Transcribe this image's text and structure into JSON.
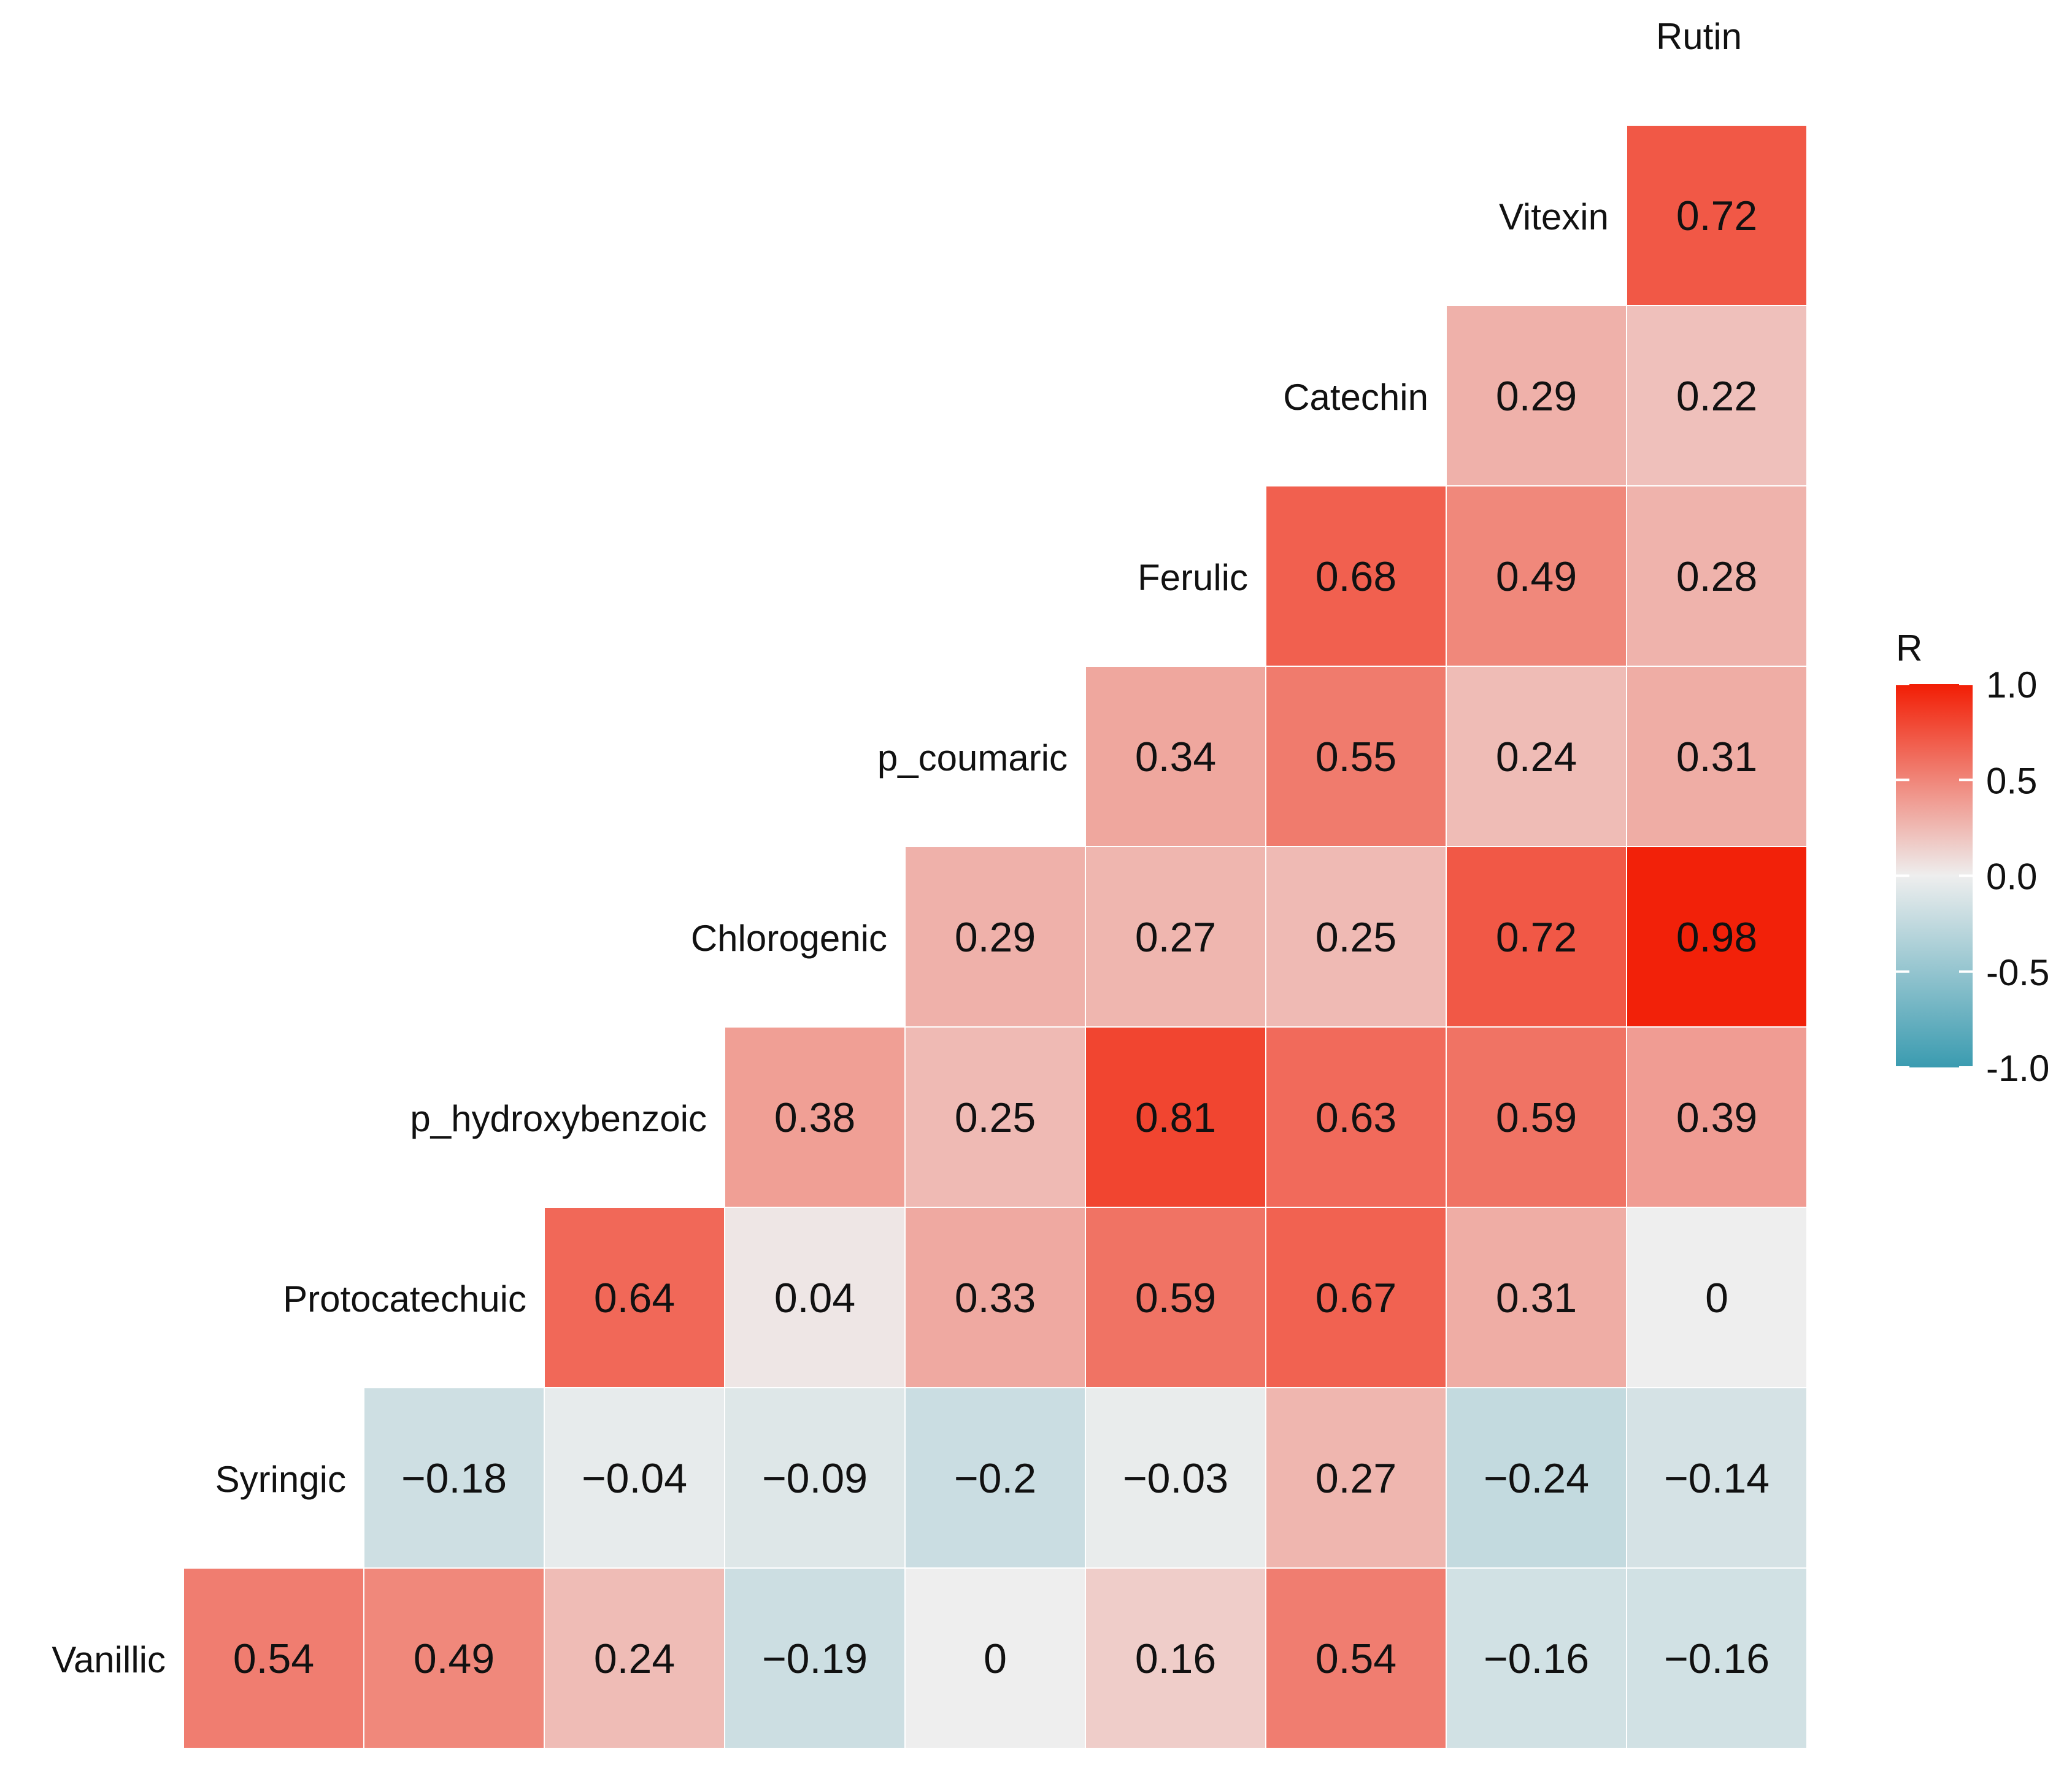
{
  "chart_data": {
    "type": "heatmap",
    "title": "",
    "subtitle": "",
    "xlabel": "",
    "ylabel": "",
    "layout": "lower-triangle correlation matrix with diagonal row labels",
    "variables": [
      "Vanillic",
      "Syringic",
      "Protocatechuic",
      "p_hydroxybenzoic",
      "Chlorogenic",
      "p_coumaric",
      "Ferulic",
      "Catechin",
      "Vitexin",
      "Rutin"
    ],
    "rows": [
      {
        "name": "Rutin",
        "cells": []
      },
      {
        "name": "Vitexin",
        "cells": [
          {
            "col": "Rutin",
            "value": 0.72,
            "label": "0.72"
          }
        ]
      },
      {
        "name": "Catechin",
        "cells": [
          {
            "col": "Vitexin",
            "value": 0.29,
            "label": "0.29"
          },
          {
            "col": "Rutin",
            "value": 0.22,
            "label": "0.22"
          }
        ]
      },
      {
        "name": "Ferulic",
        "cells": [
          {
            "col": "Catechin",
            "value": 0.68,
            "label": "0.68"
          },
          {
            "col": "Vitexin",
            "value": 0.49,
            "label": "0.49"
          },
          {
            "col": "Rutin",
            "value": 0.28,
            "label": "0.28"
          }
        ]
      },
      {
        "name": "p_coumaric",
        "cells": [
          {
            "col": "Ferulic",
            "value": 0.34,
            "label": "0.34"
          },
          {
            "col": "Catechin",
            "value": 0.55,
            "label": "0.55"
          },
          {
            "col": "Vitexin",
            "value": 0.24,
            "label": "0.24"
          },
          {
            "col": "Rutin",
            "value": 0.31,
            "label": "0.31"
          }
        ]
      },
      {
        "name": "Chlorogenic",
        "cells": [
          {
            "col": "p_coumaric",
            "value": 0.29,
            "label": "0.29"
          },
          {
            "col": "Ferulic",
            "value": 0.27,
            "label": "0.27"
          },
          {
            "col": "Catechin",
            "value": 0.25,
            "label": "0.25"
          },
          {
            "col": "Vitexin",
            "value": 0.72,
            "label": "0.72"
          },
          {
            "col": "Rutin",
            "value": 0.98,
            "label": "0.98"
          }
        ]
      },
      {
        "name": "p_hydroxybenzoic",
        "cells": [
          {
            "col": "Chlorogenic",
            "value": 0.38,
            "label": "0.38"
          },
          {
            "col": "p_coumaric",
            "value": 0.25,
            "label": "0.25"
          },
          {
            "col": "Ferulic",
            "value": 0.81,
            "label": "0.81"
          },
          {
            "col": "Catechin",
            "value": 0.63,
            "label": "0.63"
          },
          {
            "col": "Vitexin",
            "value": 0.59,
            "label": "0.59"
          },
          {
            "col": "Rutin",
            "value": 0.39,
            "label": "0.39"
          }
        ]
      },
      {
        "name": "Protocatechuic",
        "cells": [
          {
            "col": "p_hydroxybenzoic",
            "value": 0.64,
            "label": "0.64"
          },
          {
            "col": "Chlorogenic",
            "value": 0.04,
            "label": "0.04"
          },
          {
            "col": "p_coumaric",
            "value": 0.33,
            "label": "0.33"
          },
          {
            "col": "Ferulic",
            "value": 0.59,
            "label": "0.59"
          },
          {
            "col": "Catechin",
            "value": 0.67,
            "label": "0.67"
          },
          {
            "col": "Vitexin",
            "value": 0.31,
            "label": "0.31"
          },
          {
            "col": "Rutin",
            "value": 0,
            "label": "0"
          }
        ]
      },
      {
        "name": "Syringic",
        "cells": [
          {
            "col": "Protocatechuic",
            "value": -0.18,
            "label": "−0.18"
          },
          {
            "col": "p_hydroxybenzoic",
            "value": -0.04,
            "label": "−0.04"
          },
          {
            "col": "Chlorogenic",
            "value": -0.09,
            "label": "−0.09"
          },
          {
            "col": "p_coumaric",
            "value": -0.2,
            "label": "−0.2"
          },
          {
            "col": "Ferulic",
            "value": -0.03,
            "label": "−0.03"
          },
          {
            "col": "Catechin",
            "value": 0.27,
            "label": "0.27"
          },
          {
            "col": "Vitexin",
            "value": -0.24,
            "label": "−0.24"
          },
          {
            "col": "Rutin",
            "value": -0.14,
            "label": "−0.14"
          }
        ]
      },
      {
        "name": "Vanillic",
        "cells": [
          {
            "col": "Syringic",
            "value": 0.54,
            "label": "0.54"
          },
          {
            "col": "Protocatechuic",
            "value": 0.49,
            "label": "0.49"
          },
          {
            "col": "p_hydroxybenzoic",
            "value": 0.24,
            "label": "0.24"
          },
          {
            "col": "Chlorogenic",
            "value": -0.19,
            "label": "−0.19"
          },
          {
            "col": "p_coumaric",
            "value": 0,
            "label": "0"
          },
          {
            "col": "Ferulic",
            "value": 0.16,
            "label": "0.16"
          },
          {
            "col": "Catechin",
            "value": 0.54,
            "label": "0.54"
          },
          {
            "col": "Vitexin",
            "value": -0.16,
            "label": "−0.16"
          },
          {
            "col": "Rutin",
            "value": -0.16,
            "label": "−0.16"
          }
        ]
      }
    ],
    "columns": [
      "Syringic",
      "Protocatechuic",
      "p_hydroxybenzoic",
      "Chlorogenic",
      "p_coumaric",
      "Ferulic",
      "Catechin",
      "Vitexin",
      "Rutin"
    ],
    "legend": {
      "title": "R",
      "position": "right",
      "range": [
        -1.0,
        1.0
      ],
      "ticks": [
        {
          "value": 1.0,
          "label": "1.0"
        },
        {
          "value": 0.5,
          "label": "0.5"
        },
        {
          "value": 0.0,
          "label": "0.0"
        },
        {
          "value": -0.5,
          "label": "-0.5"
        },
        {
          "value": -1.0,
          "label": "-1.0"
        }
      ],
      "colors": {
        "low": "#3a9bb0",
        "mid": "#eeeeee",
        "high": "#f21d04"
      }
    }
  }
}
